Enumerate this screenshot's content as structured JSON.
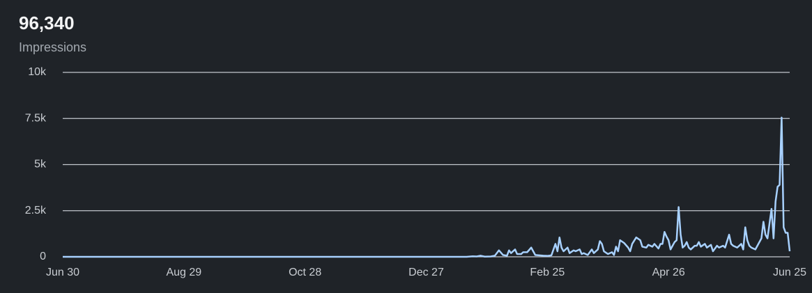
{
  "chart_data": {
    "type": "line",
    "title": "96,340",
    "subtitle": "Impressions",
    "x": [
      0,
      200,
      203,
      205,
      207,
      209,
      212,
      214,
      216,
      218,
      220,
      221,
      222,
      224,
      225,
      227,
      228,
      230,
      232,
      234,
      236,
      238,
      240,
      242,
      244,
      245,
      246,
      247,
      248,
      250,
      251,
      253,
      254,
      256,
      257,
      258,
      260,
      262,
      263,
      265,
      266,
      267,
      268,
      270,
      272,
      273,
      274,
      275,
      276,
      278,
      280,
      281,
      282,
      284,
      286,
      287,
      289,
      290,
      292,
      293,
      295,
      296,
      297,
      298,
      299,
      300,
      301,
      303,
      304,
      305,
      306,
      307,
      308,
      309,
      310,
      311,
      313,
      314,
      315,
      316,
      318,
      319,
      321,
      322,
      324,
      325,
      327,
      328,
      330,
      331,
      332,
      334,
      336,
      337,
      338,
      339,
      340,
      341,
      343,
      344,
      346,
      347,
      348,
      349,
      350,
      351,
      352,
      353,
      354,
      355,
      356,
      357,
      358,
      359,
      360
    ],
    "series": [
      {
        "name": "Impressions",
        "color": "#a8d1ff",
        "values": [
          0,
          0,
          30,
          20,
          60,
          10,
          20,
          60,
          350,
          100,
          60,
          350,
          200,
          400,
          150,
          150,
          250,
          250,
          500,
          100,
          80,
          60,
          50,
          80,
          700,
          300,
          1050,
          500,
          300,
          500,
          200,
          350,
          300,
          400,
          150,
          200,
          100,
          400,
          200,
          400,
          850,
          700,
          300,
          150,
          250,
          100,
          550,
          300,
          900,
          750,
          500,
          300,
          700,
          1050,
          900,
          550,
          500,
          650,
          550,
          700,
          450,
          700,
          700,
          1350,
          1100,
          900,
          400,
          800,
          900,
          2700,
          1200,
          500,
          600,
          800,
          500,
          400,
          600,
          600,
          800,
          550,
          700,
          500,
          650,
          300,
          600,
          500,
          600,
          500,
          1200,
          700,
          600,
          500,
          700,
          400,
          1600,
          900,
          600,
          500,
          400,
          600,
          1000,
          1900,
          1200,
          1000,
          1800,
          2600,
          1000,
          3000,
          3800,
          3900,
          7550,
          1600,
          1300,
          1300,
          300
        ]
      }
    ],
    "xlim": [
      0,
      360
    ],
    "xticks": [
      {
        "value": 0,
        "label": "Jun 30"
      },
      {
        "value": 60,
        "label": "Aug 29"
      },
      {
        "value": 120,
        "label": "Oct 28"
      },
      {
        "value": 180,
        "label": "Dec 27"
      },
      {
        "value": 240,
        "label": "Feb 25"
      },
      {
        "value": 300,
        "label": "Apr 26"
      },
      {
        "value": 360,
        "label": "Jun 25"
      }
    ],
    "ylim": [
      0,
      10000
    ],
    "yticks": [
      0,
      {
        "value": 2500,
        "label": "2.5k"
      },
      {
        "value": 5000,
        "label": "5k"
      },
      {
        "value": 7500,
        "label": "7.5k"
      },
      {
        "value": 10000,
        "label": "10k"
      }
    ],
    "grid": true
  }
}
